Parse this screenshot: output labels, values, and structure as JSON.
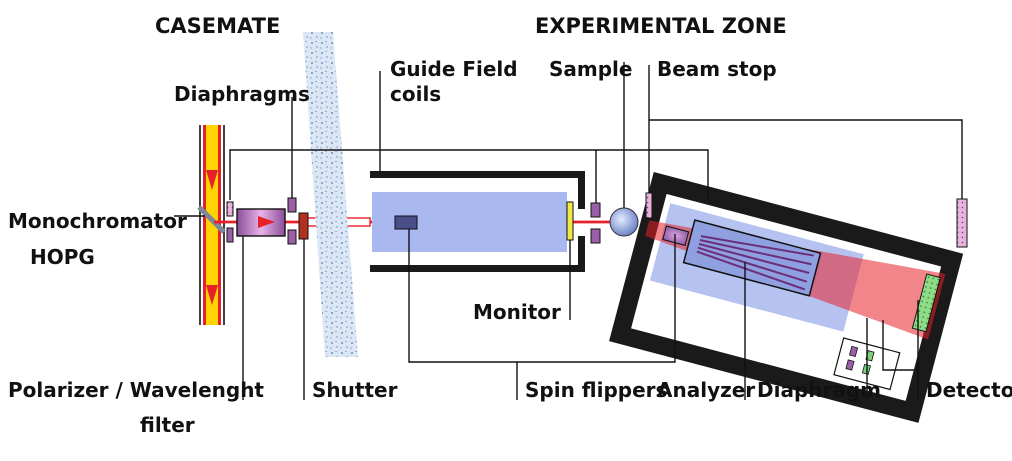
{
  "titles": {
    "casemate": "CASEMATE",
    "experimental_zone": "EXPERIMENTAL ZONE"
  },
  "labels": {
    "diaphragms": "Diaphragms",
    "monochromator_line1": "Monochromator",
    "monochromator_line2": "HOPG",
    "polarizer_line1": "Polarizer / Wavelenght",
    "polarizer_line2": "filter",
    "shutter": "Shutter",
    "guide_field_line1": "Guide Field",
    "guide_field_line2": "coils",
    "sample": "Sample",
    "beam_stop": "Beam stop",
    "monitor": "Monitor",
    "spin_flippers": "Spin flippers",
    "analyzer": "Analyzer",
    "diaphragm": "Diaphragm",
    "detector": "Detector"
  },
  "colors": {
    "beam": "#e8202a",
    "incident_beam": "#ffd400",
    "field_region": "#a9b8ee",
    "housing": "#1a1a1a",
    "wall": "#c9d8ef",
    "component_purple": "#9b5fa8",
    "shutter_red": "#b0321e",
    "detector_green": "#7fd07a"
  }
}
